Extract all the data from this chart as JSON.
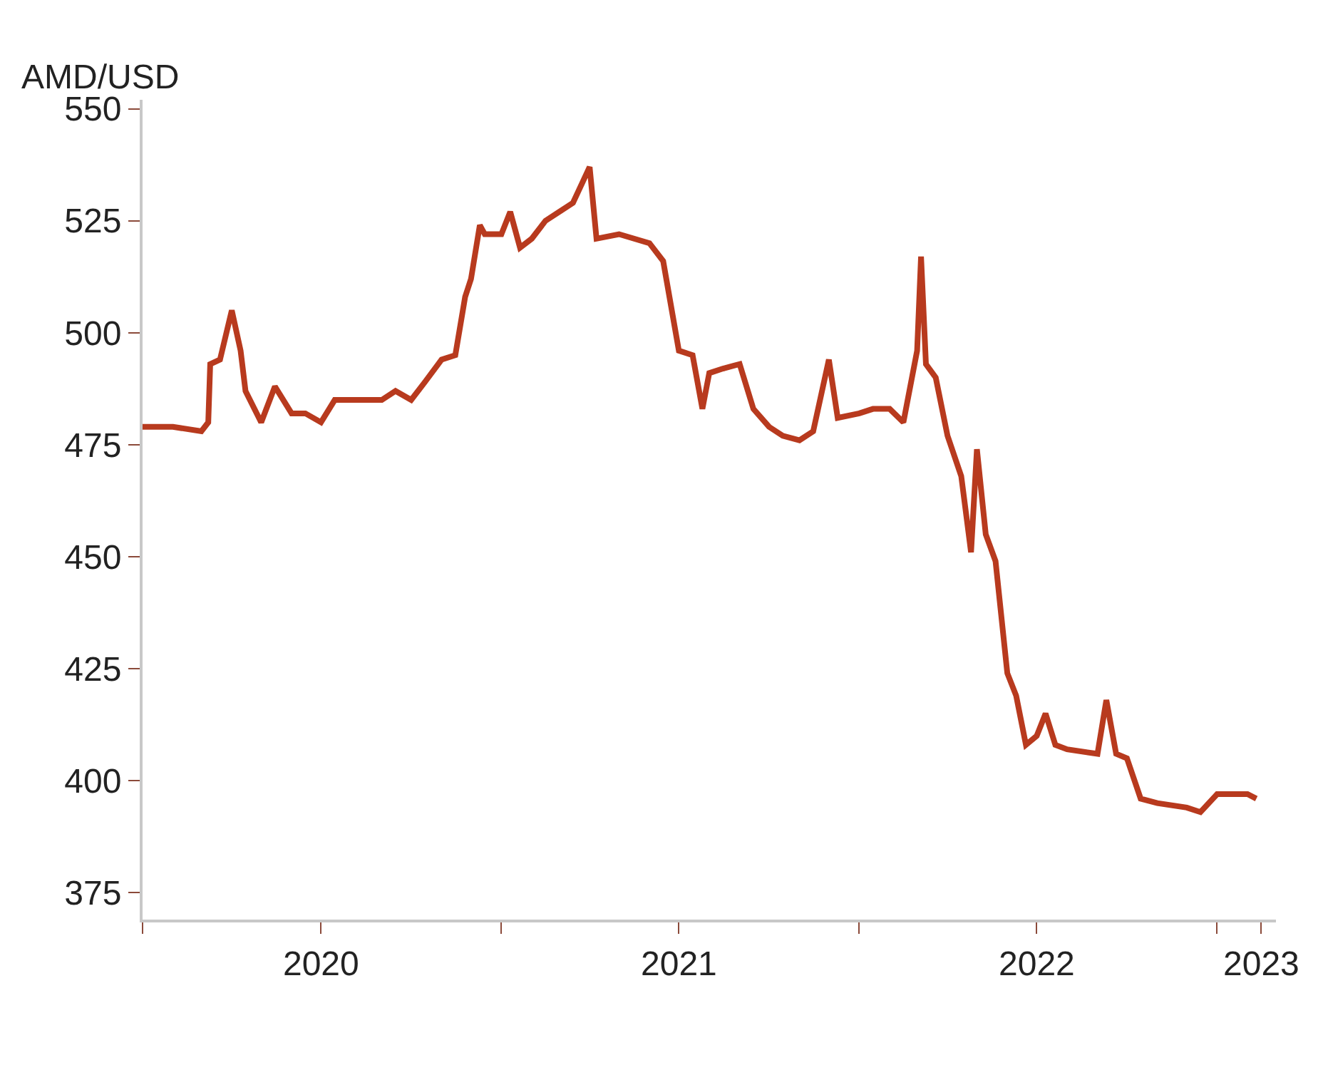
{
  "chart_data": {
    "type": "line",
    "ylabel": "AMD/USD",
    "x": [
      "2020-01-01",
      "2020-01-15",
      "2020-02-01",
      "2020-03-01",
      "2020-03-08",
      "2020-03-10",
      "2020-03-20",
      "2020-04-01",
      "2020-04-10",
      "2020-04-15",
      "2020-05-01",
      "2020-05-15",
      "2020-06-01",
      "2020-06-15",
      "2020-07-01",
      "2020-07-15",
      "2020-08-01",
      "2020-09-01",
      "2020-09-15",
      "2020-10-01",
      "2020-10-15",
      "2020-11-01",
      "2020-11-15",
      "2020-11-25",
      "2020-12-01",
      "2020-12-10",
      "2020-12-15",
      "2021-01-01",
      "2021-01-10",
      "2021-01-20",
      "2021-02-01",
      "2021-02-15",
      "2021-03-01",
      "2021-03-15",
      "2021-04-01",
      "2021-04-08",
      "2021-05-01",
      "2021-06-01",
      "2021-06-15",
      "2021-07-01",
      "2021-07-15",
      "2021-07-25",
      "2021-08-01",
      "2021-08-15",
      "2021-09-01",
      "2021-09-15",
      "2021-10-01",
      "2021-10-15",
      "2021-11-01",
      "2021-11-15",
      "2021-12-01",
      "2021-12-10",
      "2022-01-01",
      "2022-01-15",
      "2022-02-01",
      "2022-02-15",
      "2022-03-01",
      "2022-03-05",
      "2022-03-10",
      "2022-03-20",
      "2022-04-01",
      "2022-04-15",
      "2022-04-25",
      "2022-05-01",
      "2022-05-10",
      "2022-05-20",
      "2022-06-01",
      "2022-06-10",
      "2022-06-20",
      "2022-07-01",
      "2022-07-10",
      "2022-07-20",
      "2022-08-01",
      "2022-09-01",
      "2022-09-10",
      "2022-09-20",
      "2022-10-01",
      "2022-10-15",
      "2022-11-01",
      "2022-12-01",
      "2022-12-15",
      "2023-01-01",
      "2023-02-01",
      "2023-02-10"
    ],
    "series": [
      {
        "color": "#b83a1e",
        "values": [
          479,
          479,
          479,
          478,
          480,
          493,
          494,
          505,
          496,
          487,
          480,
          488,
          482,
          482,
          480,
          485,
          485,
          485,
          487,
          485,
          489,
          494,
          495,
          508,
          512,
          524,
          522,
          522,
          527,
          519,
          521,
          525,
          527,
          529,
          537,
          521,
          522,
          520,
          516,
          496,
          495,
          483,
          491,
          492,
          493,
          483,
          479,
          477,
          476,
          478,
          494,
          481,
          482,
          483,
          483,
          480,
          496,
          517,
          493,
          490,
          477,
          468,
          451,
          474,
          455,
          449,
          424,
          419,
          408,
          410,
          415,
          408,
          407,
          406,
          418,
          406,
          405,
          396,
          395,
          394,
          393,
          397,
          397,
          396
        ]
      }
    ],
    "ylim": [
      369,
      552
    ],
    "yticks": [
      375,
      400,
      425,
      450,
      475,
      500,
      525,
      550
    ],
    "xlim": [
      "2020-01-01",
      "2023-03-02"
    ],
    "xticks": [
      {
        "value": "2020-01-01",
        "label": null
      },
      {
        "value": "2020-07-01",
        "label": "2020"
      },
      {
        "value": "2021-01-01",
        "label": null
      },
      {
        "value": "2021-07-01",
        "label": "2021"
      },
      {
        "value": "2022-01-01",
        "label": null
      },
      {
        "value": "2022-07-01",
        "label": "2022"
      },
      {
        "value": "2023-01-01",
        "label": null
      },
      {
        "value": "2023-02-15",
        "label": "2023"
      }
    ],
    "marker": "none",
    "line_style": "solid"
  }
}
